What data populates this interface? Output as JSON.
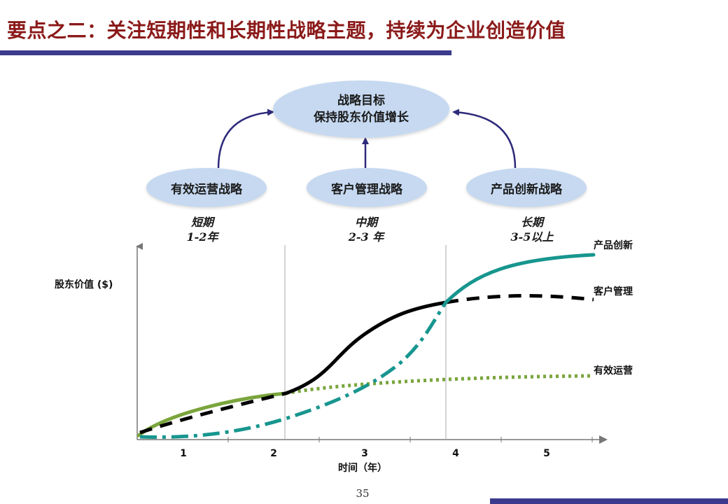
{
  "title": "要点之二：关注短期性和长期性战略主题，持续为企业创造价值",
  "goal": {
    "line1": "战略目标",
    "line2": "保持股东价值增长"
  },
  "strategies": [
    {
      "label": "有效运营战略",
      "period_name": "短期",
      "period_years": "1-2年"
    },
    {
      "label": "客户管理战略",
      "period_name": "中期",
      "period_years": "2-3 年"
    },
    {
      "label": "产品创新战略",
      "period_name": "长期",
      "period_years": "3-5以上"
    }
  ],
  "colors": {
    "title": "#8b1a1a",
    "rule": "#3b3a8c",
    "oval": "#c6d9f1",
    "arrow": "#2e2a7a",
    "operations": "#7aa53c",
    "customer": "#000000",
    "product": "#17968f"
  },
  "chart_data": {
    "type": "line",
    "ylabel": "股东价值 ($)",
    "xlabel": "时间（年）",
    "x_ticks": [
      "1",
      "2",
      "3",
      "4",
      "5"
    ],
    "series": [
      {
        "name": "产品创新"
      },
      {
        "name": "客户管理"
      },
      {
        "name": "有效运营"
      }
    ]
  },
  "page_number": "35"
}
